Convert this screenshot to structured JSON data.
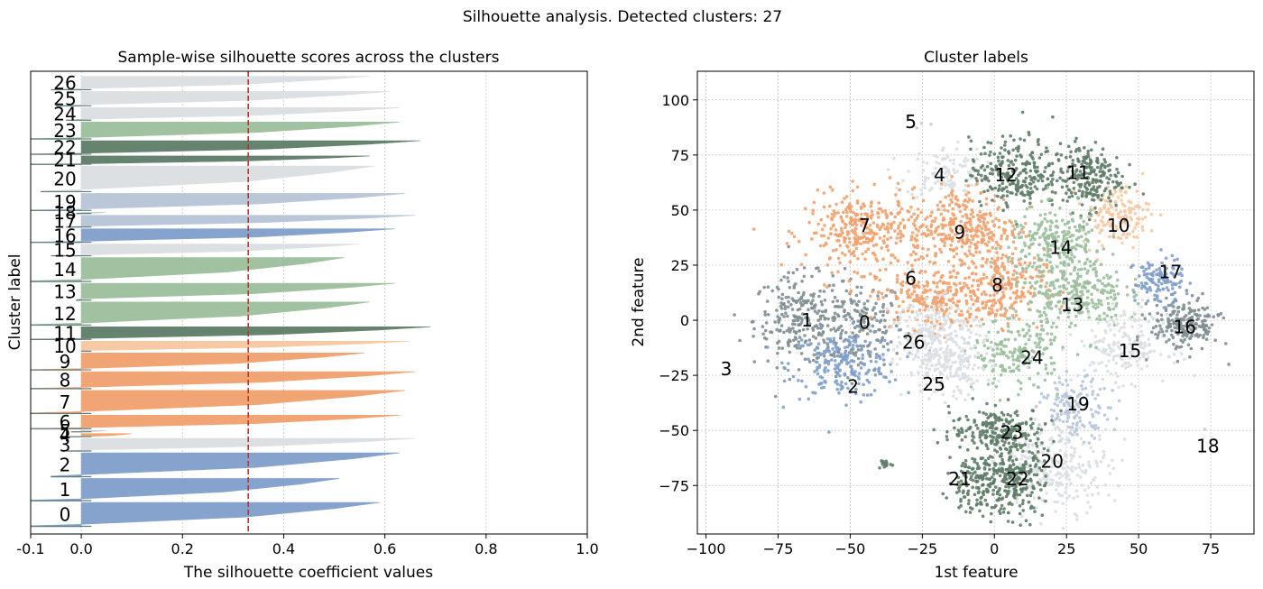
{
  "figure": {
    "suptitle": "Silhouette analysis. Detected clusters: 27"
  },
  "colors": {
    "gray": "#c9cdd1",
    "sage": "#9bbf9d",
    "dark_green": "#5e7d68",
    "blue": "#7f9fcb",
    "orange": "#f2a16d",
    "light_orange": "#f7c8a1",
    "dark_gray": "#7f8e92",
    "light_blue": "#b6c5d8",
    "light_gray": "#dcdfe2",
    "avg_line": "#b5372a"
  },
  "chart_data": [
    {
      "type": "bar",
      "orientation": "horizontal",
      "title": "Sample-wise silhouette scores across the clusters",
      "xlabel": "The silhouette coefficient values",
      "ylabel": "Cluster label",
      "xlim": [
        -0.1,
        1.0
      ],
      "xticks": [
        "-0.1",
        "0.0",
        "0.2",
        "0.4",
        "0.6",
        "0.8",
        "1.0"
      ],
      "xtick_values": [
        -0.1,
        0.0,
        0.2,
        0.4,
        0.6,
        0.8,
        1.0
      ],
      "grid": true,
      "average_silhouette": 0.33,
      "categories": [
        "0",
        "1",
        "2",
        "3",
        "4",
        "5",
        "6",
        "7",
        "8",
        "9",
        "10",
        "11",
        "12",
        "13",
        "14",
        "15",
        "16",
        "17",
        "18",
        "19",
        "20",
        "21",
        "22",
        "23",
        "24",
        "25",
        "26"
      ],
      "clusters": [
        {
          "label": "0",
          "max": 0.59,
          "min": -0.1,
          "size": 28,
          "color": "blue"
        },
        {
          "label": "1",
          "max": 0.51,
          "min": -0.1,
          "size": 26,
          "color": "blue"
        },
        {
          "label": "2",
          "max": 0.63,
          "min": -0.06,
          "size": 28,
          "color": "blue"
        },
        {
          "label": "3",
          "max": 0.66,
          "min": -0.03,
          "size": 15,
          "color": "light_gray"
        },
        {
          "label": "4",
          "max": 0.1,
          "min": -0.03,
          "size": 4,
          "color": "orange"
        },
        {
          "label": "5",
          "max": 0.05,
          "min": -0.02,
          "size": 2,
          "color": "gray"
        },
        {
          "label": "6",
          "max": 0.63,
          "min": -0.1,
          "size": 16,
          "color": "orange"
        },
        {
          "label": "7",
          "max": 0.64,
          "min": -0.1,
          "size": 27,
          "color": "orange"
        },
        {
          "label": "8",
          "max": 0.66,
          "min": -0.1,
          "size": 20,
          "color": "orange"
        },
        {
          "label": "9",
          "max": 0.56,
          "min": -0.1,
          "size": 20,
          "color": "orange"
        },
        {
          "label": "10",
          "max": 0.65,
          "min": 0.0,
          "size": 12,
          "color": "light_orange"
        },
        {
          "label": "11",
          "max": 0.69,
          "min": -0.1,
          "size": 15,
          "color": "dark_green"
        },
        {
          "label": "12",
          "max": 0.57,
          "min": -0.1,
          "size": 27,
          "color": "sage"
        },
        {
          "label": "13",
          "max": 0.62,
          "min": -0.01,
          "size": 20,
          "color": "sage"
        },
        {
          "label": "14",
          "max": 0.52,
          "min": -0.1,
          "size": 28,
          "color": "sage"
        },
        {
          "label": "15",
          "max": 0.55,
          "min": -0.06,
          "size": 14,
          "color": "light_gray"
        },
        {
          "label": "16",
          "max": 0.62,
          "min": -0.1,
          "size": 16,
          "color": "blue"
        },
        {
          "label": "17",
          "max": 0.66,
          "min": -0.03,
          "size": 14,
          "color": "light_blue"
        },
        {
          "label": "18",
          "max": 0.05,
          "min": -0.01,
          "size": 2,
          "color": "gray"
        },
        {
          "label": "19",
          "max": 0.64,
          "min": -0.1,
          "size": 20,
          "color": "light_blue"
        },
        {
          "label": "20",
          "max": 0.58,
          "min": -0.08,
          "size": 30,
          "color": "light_gray"
        },
        {
          "label": "21",
          "max": 0.57,
          "min": -0.1,
          "size": 10,
          "color": "dark_green"
        },
        {
          "label": "22",
          "max": 0.67,
          "min": -0.1,
          "size": 16,
          "color": "dark_green"
        },
        {
          "label": "23",
          "max": 0.63,
          "min": -0.1,
          "size": 20,
          "color": "sage"
        },
        {
          "label": "24",
          "max": 0.63,
          "min": -0.03,
          "size": 15,
          "color": "light_gray"
        },
        {
          "label": "25",
          "max": 0.61,
          "min": -0.05,
          "size": 17,
          "color": "light_gray"
        },
        {
          "label": "26",
          "max": 0.57,
          "min": -0.06,
          "size": 16,
          "color": "light_gray"
        }
      ]
    },
    {
      "type": "scatter",
      "title": "Cluster labels",
      "xlabel": "1st feature",
      "ylabel": "2nd feature",
      "xlim": [
        -103,
        90
      ],
      "ylim": [
        -97,
        113
      ],
      "xticks": [
        "−100",
        "−75",
        "−50",
        "−25",
        "0",
        "25",
        "50",
        "75"
      ],
      "xtick_values": [
        -100,
        -75,
        -50,
        -25,
        0,
        25,
        50,
        75
      ],
      "yticks": [
        "−75",
        "−50",
        "−25",
        "0",
        "25",
        "50",
        "75",
        "100"
      ],
      "ytick_values": [
        -75,
        -50,
        -25,
        0,
        25,
        50,
        75,
        100
      ],
      "grid": true,
      "clusters": [
        {
          "label": "0",
          "cx": -47,
          "cy": -2,
          "sx": 9,
          "sy": 12,
          "n": 190,
          "color": "dark_gray"
        },
        {
          "label": "1",
          "cx": -68,
          "cy": 0,
          "sx": 9,
          "sy": 12,
          "n": 230,
          "color": "dark_gray"
        },
        {
          "label": "2",
          "cx": -52,
          "cy": -20,
          "sx": 11,
          "sy": 9,
          "n": 220,
          "color": "blue"
        },
        {
          "label": "3",
          "cx": -38,
          "cy": -65,
          "sx": 1.5,
          "sy": 1.5,
          "n": 15,
          "color": "dark_green"
        },
        {
          "label": "4",
          "cx": -17,
          "cy": 67,
          "sx": 8,
          "sy": 7,
          "n": 110,
          "color": "light_gray"
        },
        {
          "label": "5",
          "cx": -28,
          "cy": 88,
          "sx": 3,
          "sy": 3,
          "n": 4,
          "color": "gray"
        },
        {
          "label": "6",
          "cx": -22,
          "cy": 10,
          "sx": 11,
          "sy": 8,
          "n": 230,
          "color": "orange"
        },
        {
          "label": "7",
          "cx": -45,
          "cy": 40,
          "sx": 12,
          "sy": 10,
          "n": 330,
          "color": "orange"
        },
        {
          "label": "8",
          "cx": 2,
          "cy": 15,
          "sx": 9,
          "sy": 10,
          "n": 230,
          "color": "orange"
        },
        {
          "label": "9",
          "cx": -10,
          "cy": 42,
          "sx": 11,
          "sy": 11,
          "n": 330,
          "color": "orange"
        },
        {
          "label": "10",
          "cx": 42,
          "cy": 48,
          "sx": 7,
          "sy": 8,
          "n": 150,
          "color": "light_orange"
        },
        {
          "label": "11",
          "cx": 32,
          "cy": 65,
          "sx": 7,
          "sy": 9,
          "n": 220,
          "color": "dark_green"
        },
        {
          "label": "12",
          "cx": 7,
          "cy": 67,
          "sx": 9,
          "sy": 9,
          "n": 250,
          "color": "dark_green"
        },
        {
          "label": "13",
          "cx": 28,
          "cy": 12,
          "sx": 10,
          "sy": 9,
          "n": 260,
          "color": "sage"
        },
        {
          "label": "14",
          "cx": 22,
          "cy": 35,
          "sx": 10,
          "sy": 9,
          "n": 250,
          "color": "sage"
        },
        {
          "label": "15",
          "cx": 45,
          "cy": -12,
          "sx": 9,
          "sy": 9,
          "n": 180,
          "color": "light_gray"
        },
        {
          "label": "16",
          "cx": 66,
          "cy": -2,
          "sx": 7,
          "sy": 7,
          "n": 210,
          "color": "dark_gray"
        },
        {
          "label": "17",
          "cx": 57,
          "cy": 18,
          "sx": 5,
          "sy": 6,
          "n": 120,
          "color": "blue"
        },
        {
          "label": "18",
          "cx": 72,
          "cy": -55,
          "sx": 4,
          "sy": 4,
          "n": 3,
          "color": "gray"
        },
        {
          "label": "19",
          "cx": 28,
          "cy": -40,
          "sx": 7,
          "sy": 8,
          "n": 150,
          "color": "light_blue"
        },
        {
          "label": "20",
          "cx": 22,
          "cy": -67,
          "sx": 11,
          "sy": 11,
          "n": 260,
          "color": "light_gray"
        },
        {
          "label": "21",
          "cx": -6,
          "cy": -73,
          "sx": 6,
          "sy": 8,
          "n": 160,
          "color": "dark_green"
        },
        {
          "label": "22",
          "cx": 7,
          "cy": -73,
          "sx": 6,
          "sy": 9,
          "n": 220,
          "color": "dark_green"
        },
        {
          "label": "23",
          "cx": 2,
          "cy": -50,
          "sx": 10,
          "sy": 6,
          "n": 220,
          "color": "dark_green"
        },
        {
          "label": "24",
          "cx": 8,
          "cy": -15,
          "sx": 9,
          "sy": 9,
          "n": 190,
          "color": "sage"
        },
        {
          "label": "25",
          "cx": -16,
          "cy": -22,
          "sx": 9,
          "sy": 8,
          "n": 180,
          "color": "light_gray"
        },
        {
          "label": "26",
          "cx": -20,
          "cy": -5,
          "sx": 9,
          "sy": 8,
          "n": 200,
          "color": "light_gray"
        }
      ],
      "label_positions": [
        {
          "label": "0",
          "x": -45,
          "y": -1
        },
        {
          "label": "1",
          "x": -65,
          "y": 0
        },
        {
          "label": "2",
          "x": -49,
          "y": -30
        },
        {
          "label": "3",
          "x": -93,
          "y": -22
        },
        {
          "label": "4",
          "x": -19,
          "y": 66
        },
        {
          "label": "5",
          "x": -29,
          "y": 90
        },
        {
          "label": "6",
          "x": -29,
          "y": 19
        },
        {
          "label": "7",
          "x": -45,
          "y": 43
        },
        {
          "label": "8",
          "x": 1,
          "y": 16
        },
        {
          "label": "9",
          "x": -12,
          "y": 40
        },
        {
          "label": "10",
          "x": 43,
          "y": 43
        },
        {
          "label": "11",
          "x": 29,
          "y": 67
        },
        {
          "label": "12",
          "x": 4,
          "y": 66
        },
        {
          "label": "13",
          "x": 27,
          "y": 7
        },
        {
          "label": "14",
          "x": 23,
          "y": 33
        },
        {
          "label": "15",
          "x": 47,
          "y": -14
        },
        {
          "label": "16",
          "x": 66,
          "y": -3
        },
        {
          "label": "17",
          "x": 61,
          "y": 22
        },
        {
          "label": "18",
          "x": 74,
          "y": -57
        },
        {
          "label": "19",
          "x": 29,
          "y": -38
        },
        {
          "label": "20",
          "x": 20,
          "y": -64
        },
        {
          "label": "21",
          "x": -12,
          "y": -72
        },
        {
          "label": "22",
          "x": 8,
          "y": -72
        },
        {
          "label": "23",
          "x": 6,
          "y": -51
        },
        {
          "label": "24",
          "x": 13,
          "y": -17
        },
        {
          "label": "25",
          "x": -21,
          "y": -29
        },
        {
          "label": "26",
          "x": -28,
          "y": -10
        }
      ]
    }
  ]
}
